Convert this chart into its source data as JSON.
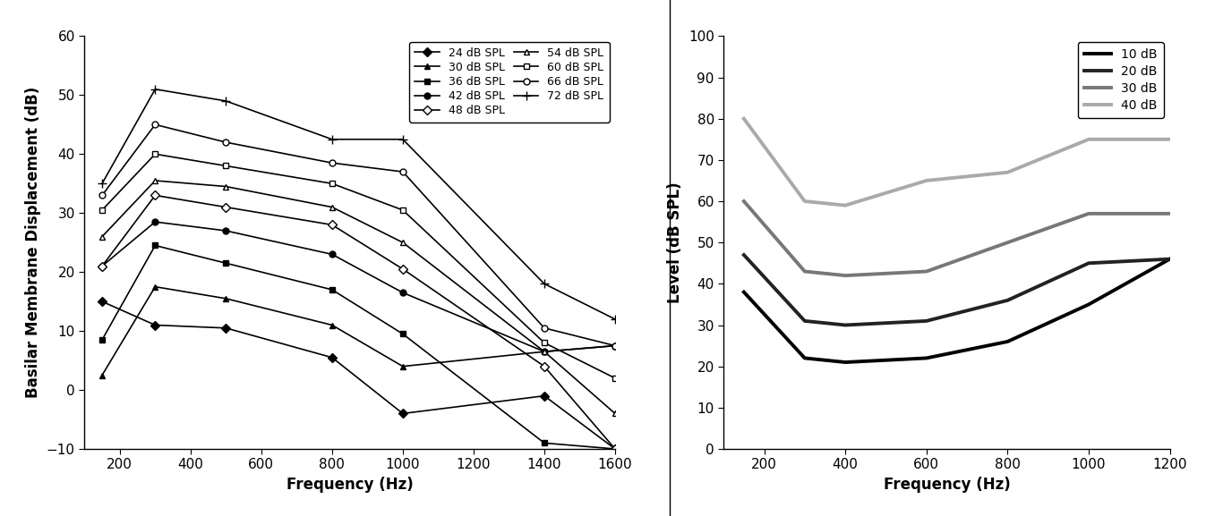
{
  "left_panel": {
    "xlabel": "Frequency (Hz)",
    "ylabel": "Basilar Membrane Displacement (dB)",
    "xlim": [
      100,
      1600
    ],
    "ylim": [
      -10,
      60
    ],
    "xticks": [
      200,
      400,
      600,
      800,
      1000,
      1200,
      1400,
      1600
    ],
    "yticks": [
      -10,
      0,
      10,
      20,
      30,
      40,
      50,
      60
    ],
    "series": [
      {
        "label": "24 dB SPL",
        "marker": "D",
        "marker_filled": true,
        "color": "#000000",
        "linewidth": 1.2,
        "markersize": 5,
        "x": [
          150,
          300,
          500,
          800,
          1000,
          1400,
          1600
        ],
        "y": [
          15,
          11,
          10.5,
          5.5,
          -4,
          -1,
          -10
        ]
      },
      {
        "label": "30 dB SPL",
        "marker": "^",
        "marker_filled": true,
        "color": "#000000",
        "linewidth": 1.2,
        "markersize": 5,
        "x": [
          150,
          300,
          500,
          800,
          1000,
          1400,
          1600
        ],
        "y": [
          2.5,
          17.5,
          15.5,
          11,
          4,
          6.5,
          7.5
        ]
      },
      {
        "label": "36 dB SPL",
        "marker": "s",
        "marker_filled": true,
        "color": "#000000",
        "linewidth": 1.2,
        "markersize": 5,
        "x": [
          150,
          300,
          500,
          800,
          1000,
          1400,
          1600
        ],
        "y": [
          8.5,
          24.5,
          21.5,
          17,
          9.5,
          -9,
          -10
        ]
      },
      {
        "label": "42 dB SPL",
        "marker": "o",
        "marker_filled": true,
        "color": "#000000",
        "linewidth": 1.2,
        "markersize": 5,
        "x": [
          150,
          300,
          500,
          800,
          1000,
          1400,
          1600
        ],
        "y": [
          21,
          28.5,
          27,
          23,
          16.5,
          6.5,
          7.5
        ]
      },
      {
        "label": "48 dB SPL",
        "marker": "D",
        "marker_filled": false,
        "color": "#000000",
        "linewidth": 1.2,
        "markersize": 5,
        "x": [
          150,
          300,
          500,
          800,
          1000,
          1400,
          1600
        ],
        "y": [
          21,
          33,
          31,
          28,
          20.5,
          4,
          -10
        ]
      },
      {
        "label": "54 dB SPL",
        "marker": "^",
        "marker_filled": false,
        "color": "#000000",
        "linewidth": 1.2,
        "markersize": 5,
        "x": [
          150,
          300,
          500,
          800,
          1000,
          1400,
          1600
        ],
        "y": [
          26,
          35.5,
          34.5,
          31,
          25,
          6.5,
          -4
        ]
      },
      {
        "label": "60 dB SPL",
        "marker": "s",
        "marker_filled": false,
        "color": "#000000",
        "linewidth": 1.2,
        "markersize": 5,
        "x": [
          150,
          300,
          500,
          800,
          1000,
          1400,
          1600
        ],
        "y": [
          30.5,
          40,
          38,
          35,
          30.5,
          8,
          2
        ]
      },
      {
        "label": "66 dB SPL",
        "marker": "o",
        "marker_filled": false,
        "color": "#000000",
        "linewidth": 1.2,
        "markersize": 5,
        "x": [
          150,
          300,
          500,
          800,
          1000,
          1400,
          1600
        ],
        "y": [
          33,
          45,
          42,
          38.5,
          37,
          10.5,
          7.5
        ]
      },
      {
        "label": "72 dB SPL",
        "marker": "+",
        "marker_filled": true,
        "color": "#000000",
        "linewidth": 1.2,
        "markersize": 7,
        "x": [
          150,
          300,
          500,
          800,
          1000,
          1400,
          1600
        ],
        "y": [
          35,
          51,
          49,
          42.5,
          42.5,
          18,
          12
        ]
      }
    ]
  },
  "right_panel": {
    "xlabel": "Frequency (Hz)",
    "ylabel": "Level (dB SPL)",
    "xlim": [
      100,
      1200
    ],
    "ylim": [
      0,
      100
    ],
    "xticks": [
      200,
      400,
      600,
      800,
      1000,
      1200
    ],
    "yticks": [
      0,
      10,
      20,
      30,
      40,
      50,
      60,
      70,
      80,
      90,
      100
    ],
    "series": [
      {
        "label": "10 dB",
        "color": "#000000",
        "linewidth": 2.8,
        "x": [
          150,
          300,
          400,
          600,
          800,
          1000,
          1200
        ],
        "y": [
          38,
          22,
          21,
          22,
          26,
          35,
          46
        ]
      },
      {
        "label": "20 dB",
        "color": "#222222",
        "linewidth": 2.8,
        "x": [
          150,
          300,
          400,
          600,
          800,
          1000,
          1200
        ],
        "y": [
          47,
          31,
          30,
          31,
          36,
          45,
          46
        ]
      },
      {
        "label": "30 dB",
        "color": "#777777",
        "linewidth": 2.8,
        "x": [
          150,
          300,
          400,
          600,
          800,
          1000,
          1200
        ],
        "y": [
          60,
          43,
          42,
          43,
          50,
          57,
          57
        ]
      },
      {
        "label": "40 dB",
        "color": "#aaaaaa",
        "linewidth": 2.8,
        "x": [
          150,
          300,
          400,
          600,
          800,
          1000,
          1200
        ],
        "y": [
          80,
          60,
          59,
          65,
          67,
          75,
          75
        ]
      }
    ]
  },
  "figure_bgcolor": "#ffffff",
  "font_size": 11,
  "label_fontsize": 12,
  "tick_fontsize": 11
}
